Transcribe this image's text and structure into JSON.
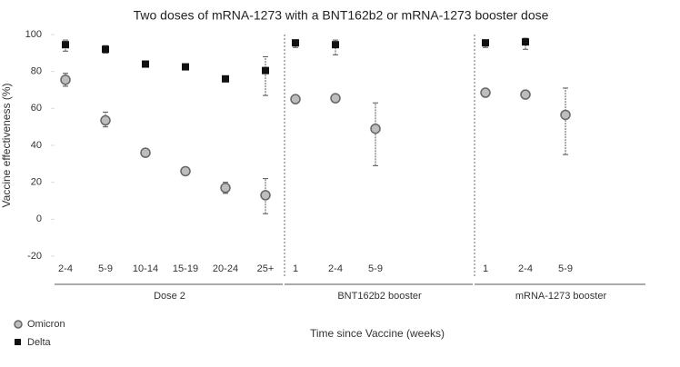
{
  "chart_data": {
    "type": "scatter",
    "title": "Two doses of mRNA-1273 with a BNT162b2 or mRNA-1273 booster dose",
    "x_label": "Time since Vaccine (weeks)",
    "y_label": "Vaccine effectiveness (%)",
    "ylim": [
      -20,
      100
    ],
    "yticks": [
      -20,
      0,
      20,
      40,
      60,
      80,
      100
    ],
    "series": [
      {
        "name": "Omicron",
        "color": "#bdbdbd",
        "marker": "circle"
      },
      {
        "name": "Delta",
        "color": "#111111",
        "marker": "square"
      }
    ],
    "groups": [
      {
        "name": "Dose 2",
        "categories": [
          "2-4",
          "5-9",
          "10-14",
          "15-19",
          "20-24",
          "25+"
        ],
        "series": [
          {
            "values": [
              75.5,
              53.5,
              36,
              26,
              17,
              13
            ],
            "lower": [
              72,
              50,
              34,
              25,
              14,
              3
            ],
            "upper": [
              79,
              58,
              38,
              27,
              20,
              22
            ]
          },
          {
            "values": [
              94.5,
              92,
              84,
              82.5,
              76,
              80.5
            ],
            "lower": [
              91,
              90,
              83,
              82,
              75,
              67
            ],
            "upper": [
              97,
              94,
              85,
              83,
              77,
              88
            ]
          }
        ]
      },
      {
        "name": "BNT162b2 booster",
        "categories": [
          "1",
          "2-4",
          "5-9"
        ],
        "series": [
          {
            "values": [
              65,
              65.5,
              49
            ],
            "lower": [
              63,
              64,
              29
            ],
            "upper": [
              67,
              67,
              63
            ]
          },
          {
            "values": [
              95.5,
              94.5,
              null
            ],
            "lower": [
              93,
              89,
              null
            ],
            "upper": [
              97,
              97,
              null
            ]
          }
        ]
      },
      {
        "name": "mRNA-1273 booster",
        "categories": [
          "1",
          "2-4",
          "5-9"
        ],
        "series": [
          {
            "values": [
              68.5,
              67.5,
              56.5
            ],
            "lower": [
              67,
              66,
              35
            ],
            "upper": [
              70,
              69,
              71
            ]
          },
          {
            "values": [
              95.5,
              96,
              null
            ],
            "lower": [
              93,
              92,
              null
            ],
            "upper": [
              97,
              98,
              null
            ]
          }
        ]
      }
    ]
  }
}
